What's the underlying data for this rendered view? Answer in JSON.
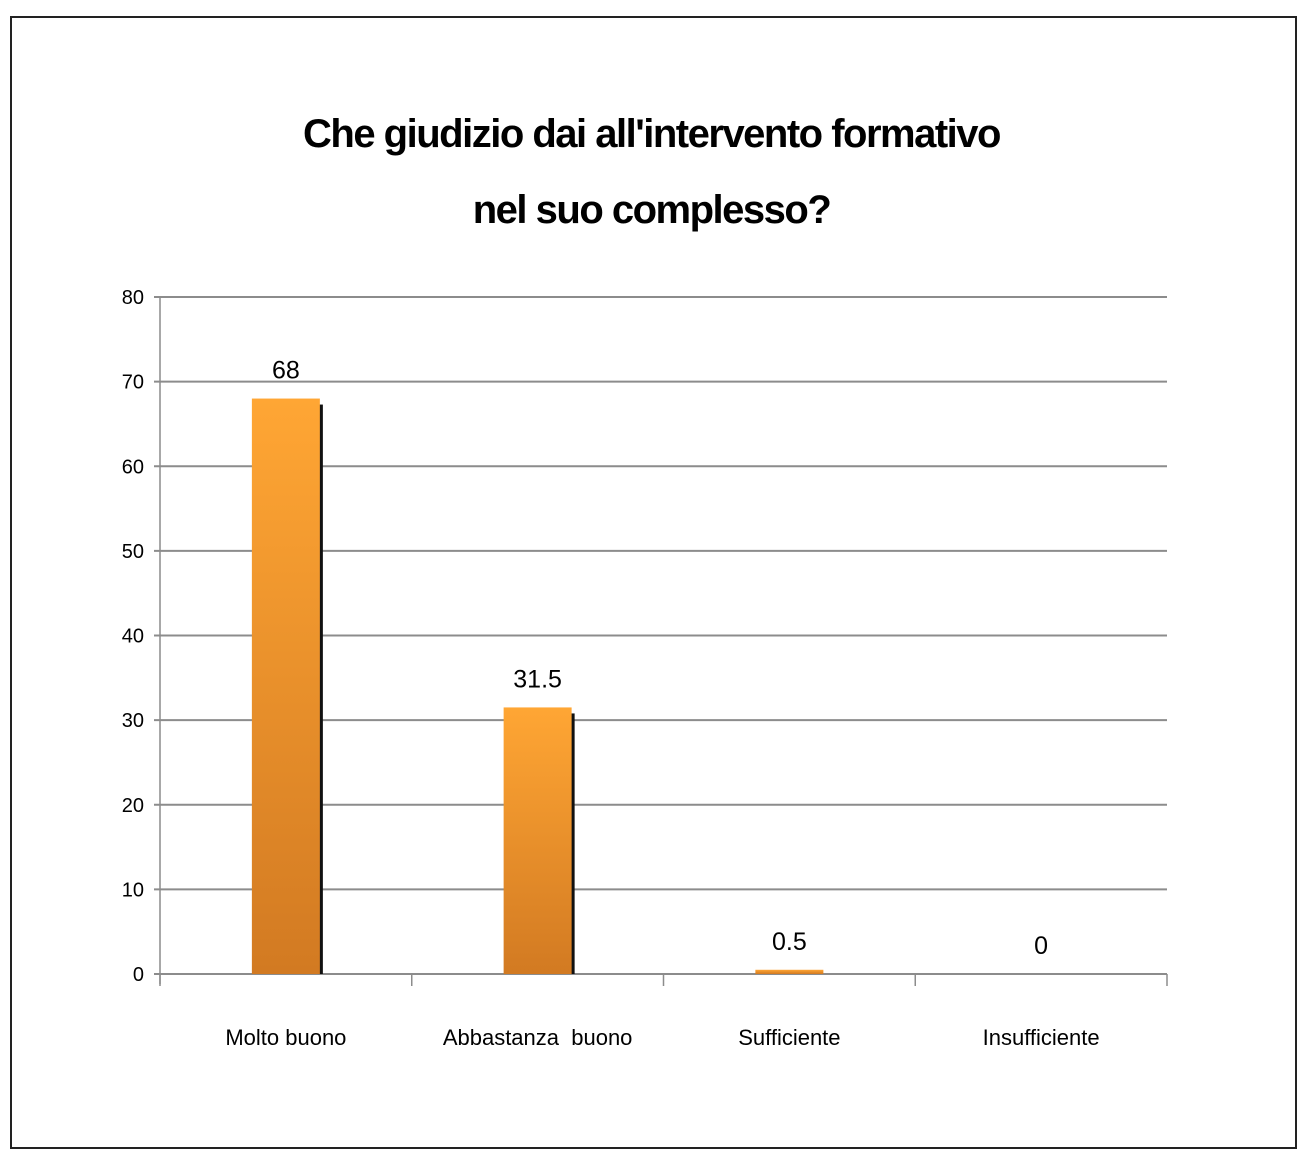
{
  "chart_data": {
    "type": "bar",
    "title_line1": "Che giudizio dai all'intervento formativo",
    "title_line2": "nel suo complesso?",
    "categories": [
      "Molto buono",
      "Abbastanza  buono",
      "Sufficiente",
      "Insufficiente"
    ],
    "values": [
      68,
      31.5,
      0.5,
      0
    ],
    "value_labels": [
      "68",
      "31.5",
      "0.5",
      "0"
    ],
    "ylim": [
      0,
      80
    ],
    "yticks": [
      0,
      10,
      20,
      30,
      40,
      50,
      60,
      70,
      80
    ],
    "grid": true,
    "legend": "none",
    "colors": {
      "bar_top": "#ffa634",
      "bar_bottom": "#d27a22",
      "shadow": "#111111",
      "grid": "#8c8c8c"
    }
  }
}
